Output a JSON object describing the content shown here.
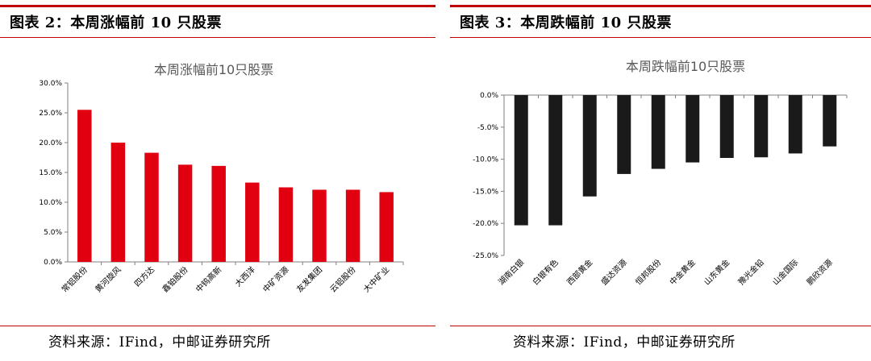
{
  "left": {
    "figure_title": "图表 2：本周涨幅前 10 只股票",
    "source": "资料来源：IFind，中邮证券研究所",
    "colors": {
      "bar": "#e0000f",
      "rule": "#c00000"
    }
  },
  "right": {
    "figure_title": "图表 3：本周跌幅前 10 只股票",
    "source": "资料来源：IFind，中邮证券研究所",
    "colors": {
      "bar": "#1a1a1a",
      "rule": "#c00000"
    }
  },
  "chart_data": [
    {
      "type": "bar",
      "title": "本周涨幅前10只股票",
      "categories": [
        "常铝股份",
        "黄河旋风",
        "四方达",
        "鑫铂股份",
        "中钨高新",
        "大西洋",
        "中矿资源",
        "友发集团",
        "云铝股份",
        "大中矿业"
      ],
      "values": [
        25.5,
        20.0,
        18.3,
        16.3,
        16.1,
        13.3,
        12.5,
        12.1,
        12.1,
        11.7
      ],
      "ylim": [
        0,
        30
      ],
      "yticks": [
        "30.0%",
        "25.0%",
        "20.0%",
        "15.0%",
        "10.0%",
        "5.0%",
        "0.0%"
      ],
      "xlabel": "",
      "ylabel": "",
      "grid": false,
      "legend": "none"
    },
    {
      "type": "bar",
      "title": "本周跌幅前10只股票",
      "categories": [
        "湖南白银",
        "白银有色",
        "西部黄金",
        "盛达资源",
        "恒邦股份",
        "中金黄金",
        "山东黄金",
        "豫光金铅",
        "山金国际",
        "鹏欣资源"
      ],
      "values": [
        -20.3,
        -20.3,
        -15.8,
        -12.3,
        -11.5,
        -10.5,
        -9.8,
        -9.7,
        -9.1,
        -8.0
      ],
      "ylim": [
        -25,
        0
      ],
      "yticks": [
        "0.0%",
        "-5.0%",
        "-10.0%",
        "-15.0%",
        "-20.0%",
        "-25.0%"
      ],
      "xlabel": "",
      "ylabel": "",
      "grid": false,
      "legend": "none"
    }
  ]
}
